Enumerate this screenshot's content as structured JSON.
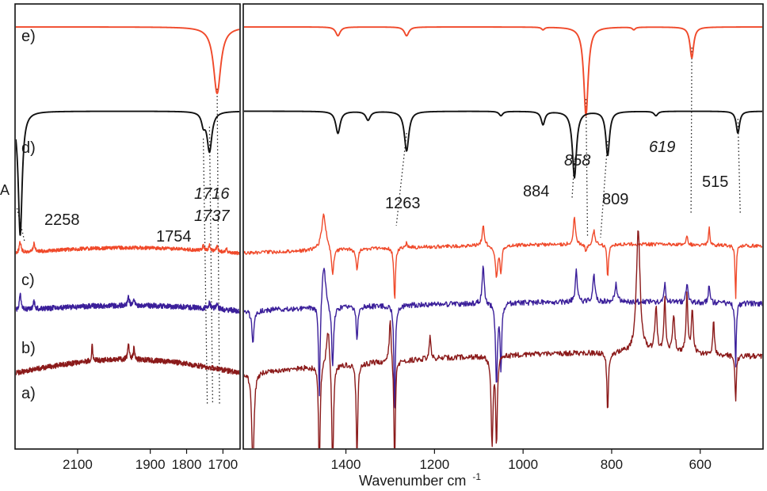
{
  "chart_data": {
    "type": "line",
    "xlabel": "Wavenumber cm",
    "xlabel_superscript": "-1",
    "ylabel": "A",
    "x_reversed": true,
    "panels": [
      {
        "id": "left",
        "xlim": [
          2270,
          1655
        ],
        "xticks": [
          2100,
          1900,
          1800,
          1700
        ]
      },
      {
        "id": "right",
        "xlim": [
          1630,
          460
        ],
        "xticks": [
          1400,
          1200,
          1000,
          800,
          600
        ]
      }
    ],
    "series": [
      {
        "name": "e)",
        "color": "#f0492a",
        "kind": "reference",
        "baseline": 0.05,
        "peaks": [
          [
            1716,
            0.15,
            12.0
          ],
          [
            1418,
            0.02,
            6.0
          ],
          [
            1263,
            0.02,
            6.0
          ],
          [
            955,
            0.006,
            4.0
          ],
          [
            858,
            0.2,
            6.0
          ],
          [
            750,
            0.006,
            4.0
          ],
          [
            619,
            0.07,
            5.0
          ]
        ]
      },
      {
        "name": "d)",
        "color": "#111111",
        "kind": "reference",
        "baseline": 0.24,
        "peaks": [
          [
            2258,
            0.28,
            6.5
          ],
          [
            1737,
            0.09,
            8.0
          ],
          [
            1754,
            0.025,
            6.0
          ],
          [
            1418,
            0.05,
            6.0
          ],
          [
            1350,
            0.02,
            6.0
          ],
          [
            1263,
            0.09,
            6.0
          ],
          [
            1050,
            0.01,
            5.0
          ],
          [
            955,
            0.03,
            5.0
          ],
          [
            884,
            0.15,
            5.5
          ],
          [
            809,
            0.1,
            5.0
          ],
          [
            700,
            0.01,
            5.0
          ],
          [
            515,
            0.05,
            4.5
          ]
        ]
      },
      {
        "name": "c)",
        "color": "#f0492a",
        "kind": "difference",
        "baseline": 0.56,
        "noise": 0.004,
        "left_peaks": [
          [
            2258,
            0.025,
            3.0
          ],
          [
            2220,
            0.02,
            2.5
          ],
          [
            1754,
            0.01,
            3.0
          ],
          [
            1737,
            0.012,
            3.0
          ],
          [
            1716,
            0.01,
            3.0
          ],
          [
            1690,
            0.008,
            2.0
          ]
        ],
        "right_peaks": [
          [
            1450,
            0.08,
            6.0
          ],
          [
            1430,
            -0.06,
            3.0
          ],
          [
            1375,
            -0.05,
            2.5
          ],
          [
            1290,
            -0.12,
            2.0
          ],
          [
            1263,
            0.01,
            3.0
          ],
          [
            1090,
            0.045,
            3.0
          ],
          [
            1060,
            -0.07,
            3.0
          ],
          [
            1050,
            -0.06,
            2.5
          ],
          [
            884,
            0.065,
            2.5
          ],
          [
            858,
            -0.02,
            2.5
          ],
          [
            840,
            0.03,
            3.0
          ],
          [
            809,
            -0.08,
            2.0
          ],
          [
            630,
            0.02,
            2.0
          ],
          [
            580,
            0.04,
            1.8
          ],
          [
            520,
            -0.12,
            1.6
          ]
        ]
      },
      {
        "name": "b)",
        "color": "#3b1f9a",
        "kind": "difference",
        "baseline": 0.69,
        "noise": 0.006,
        "left_peaks": [
          [
            2258,
            0.04,
            3.0
          ],
          [
            2220,
            0.02,
            2.5
          ],
          [
            1960,
            0.02,
            2.5
          ],
          [
            1945,
            0.012,
            2.0
          ],
          [
            1737,
            0.012,
            3.0
          ],
          [
            1716,
            0.012,
            3.0
          ]
        ],
        "right_peaks": [
          [
            1610,
            -0.07,
            3.0
          ],
          [
            1460,
            -0.22,
            2.0
          ],
          [
            1450,
            0.1,
            5.0
          ],
          [
            1430,
            -0.14,
            2.5
          ],
          [
            1375,
            -0.08,
            2.0
          ],
          [
            1290,
            -0.25,
            1.8
          ],
          [
            1090,
            0.09,
            2.5
          ],
          [
            1060,
            -0.18,
            2.5
          ],
          [
            1050,
            -0.15,
            2.0
          ],
          [
            880,
            0.07,
            2.5
          ],
          [
            840,
            0.06,
            3.0
          ],
          [
            790,
            0.04,
            3.0
          ],
          [
            680,
            0.04,
            2.0
          ],
          [
            630,
            0.045,
            2.5
          ],
          [
            580,
            0.04,
            1.8
          ],
          [
            520,
            -0.15,
            1.6
          ]
        ]
      },
      {
        "name": "a)",
        "color": "#8b1a1a",
        "kind": "difference",
        "baseline": 0.83,
        "noise": 0.006,
        "left_peaks": [
          [
            2060,
            0.035,
            2.0
          ],
          [
            1960,
            0.035,
            2.5
          ],
          [
            1945,
            0.025,
            2.0
          ]
        ],
        "right_peaks": [
          [
            1610,
            -0.22,
            3.0
          ],
          [
            1460,
            -0.25,
            2.0
          ],
          [
            1440,
            0.09,
            5.0
          ],
          [
            1430,
            -0.25,
            2.5
          ],
          [
            1375,
            -0.22,
            2.0
          ],
          [
            1300,
            0.1,
            2.5
          ],
          [
            1290,
            -0.25,
            1.8
          ],
          [
            1210,
            0.05,
            2.0
          ],
          [
            1070,
            -0.2,
            2.5
          ],
          [
            1060,
            -0.2,
            2.0
          ],
          [
            809,
            -0.14,
            2.0
          ],
          [
            740,
            0.28,
            5.0
          ],
          [
            700,
            0.1,
            3.0
          ],
          [
            680,
            0.12,
            2.5
          ],
          [
            660,
            0.08,
            3.0
          ],
          [
            630,
            0.13,
            2.5
          ],
          [
            618,
            0.1,
            2.5
          ],
          [
            570,
            0.08,
            2.0
          ],
          [
            520,
            -0.1,
            1.8
          ]
        ]
      }
    ],
    "annotations": [
      {
        "text": "2258",
        "wavenumber": 2258,
        "italic": false
      },
      {
        "text": "1754",
        "wavenumber": 1754,
        "italic": false
      },
      {
        "text": "1716",
        "wavenumber": 1716,
        "italic": true
      },
      {
        "text": "1737",
        "wavenumber": 1737,
        "italic": true
      },
      {
        "text": "1263",
        "wavenumber": 1263,
        "italic": false
      },
      {
        "text": "884",
        "wavenumber": 884,
        "italic": false
      },
      {
        "text": "858",
        "wavenumber": 858,
        "italic": true
      },
      {
        "text": "809",
        "wavenumber": 809,
        "italic": false
      },
      {
        "text": "619",
        "wavenumber": 619,
        "italic": true
      },
      {
        "text": "515",
        "wavenumber": 515,
        "italic": false
      }
    ]
  }
}
